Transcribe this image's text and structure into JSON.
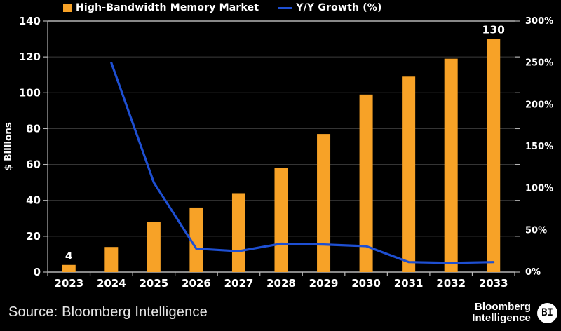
{
  "legend": {
    "items": [
      {
        "label": "High-Bandwidth Memory Market",
        "swatch": "bar"
      },
      {
        "label": "Y/Y Growth (%)",
        "swatch": "line"
      }
    ]
  },
  "chart_data": {
    "type": "bar",
    "title": "",
    "categories": [
      "2023",
      "2024",
      "2025",
      "2026",
      "2027",
      "2028",
      "2029",
      "2030",
      "2031",
      "2032",
      "2033"
    ],
    "series": [
      {
        "name": "High-Bandwidth Memory Market",
        "type": "bar",
        "axis": "left",
        "values": [
          4,
          14,
          28,
          36,
          44,
          58,
          77,
          99,
          109,
          119,
          130
        ]
      },
      {
        "name": "Y/Y Growth (%)",
        "type": "line",
        "axis": "right",
        "values": [
          null,
          250,
          107,
          28,
          25,
          34,
          33,
          31,
          12,
          11,
          12
        ]
      }
    ],
    "left_axis": {
      "label": "$ Billions",
      "min": 0,
      "max": 140,
      "ticks": [
        140,
        120,
        100,
        80,
        60,
        40,
        20,
        0
      ]
    },
    "right_axis": {
      "min": 0,
      "max": 300,
      "ticks": [
        300,
        250,
        200,
        150,
        100,
        50,
        0
      ],
      "suffix": "%"
    },
    "data_labels": [
      {
        "category": "2023",
        "text": "4"
      },
      {
        "category": "2033",
        "text": "130"
      }
    ],
    "grid": true,
    "legend_position": "top",
    "colors": {
      "background": "#000000",
      "bar": "#F7A227",
      "line": "#1E4FD2",
      "grid": "#3d3d3d",
      "axis": "#b5b5b5",
      "text": "#ffffff"
    }
  },
  "footer": {
    "source": "Source: Bloomberg Intelligence",
    "brand_line1": "Bloomberg",
    "brand_line2": "Intelligence",
    "brand_badge": "BI"
  }
}
